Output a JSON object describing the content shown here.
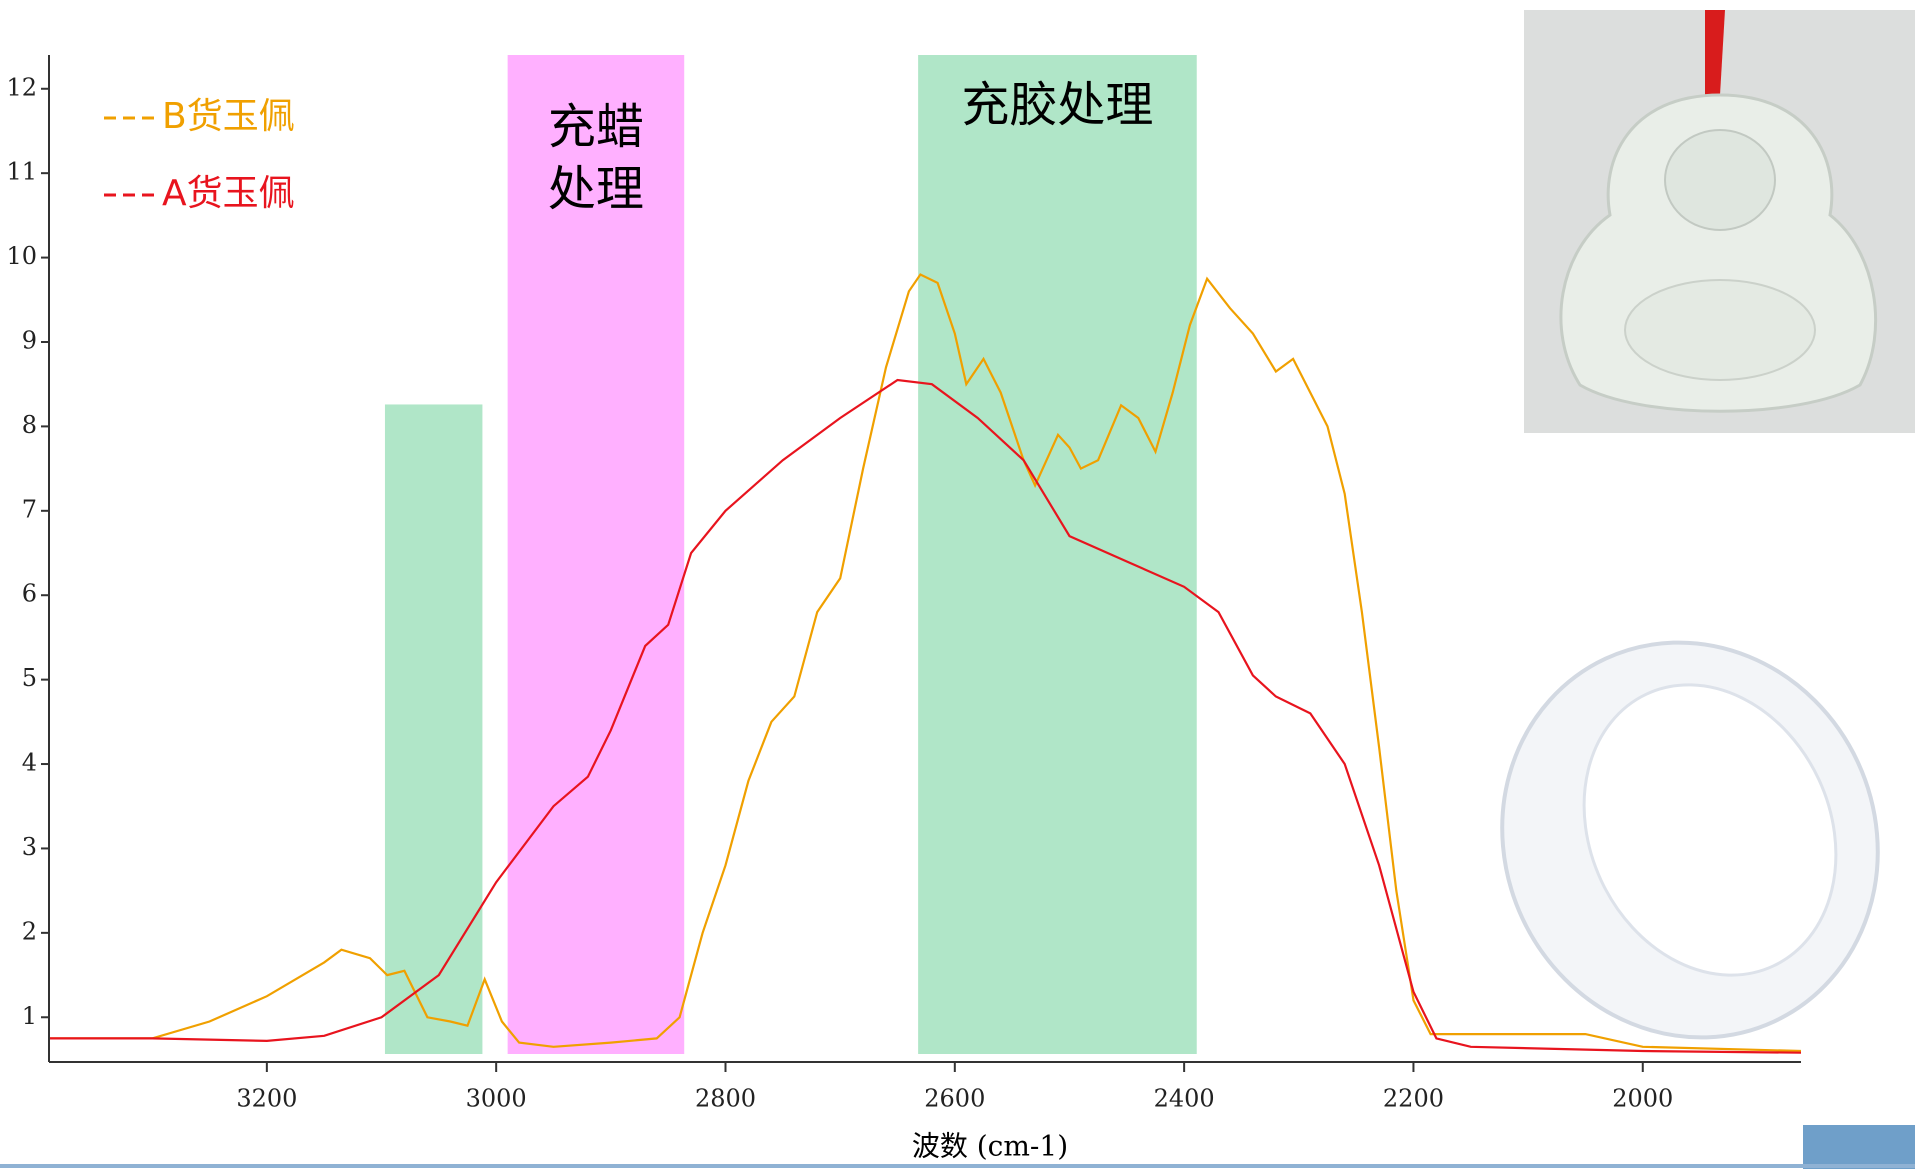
{
  "chart_data": {
    "type": "line",
    "x_label": "波数 (cm-1)",
    "xlim": [
      3390,
      1862
    ],
    "ylim": [
      0.47,
      12.4
    ],
    "xticks": [
      3200,
      3000,
      2800,
      2600,
      2400,
      2200,
      2000
    ],
    "yticks": [
      1,
      2,
      3,
      4,
      5,
      6,
      7,
      8,
      9,
      10,
      11,
      12
    ],
    "bands": [
      {
        "xrange": [
          3097,
          3012
        ],
        "ytop": 8.26,
        "color": "#b0e6c8"
      },
      {
        "xrange": [
          2990,
          2836
        ],
        "ytop": 12.4,
        "color": "#ffb0ff",
        "label_lines": [
          "充蜡",
          "处理"
        ]
      },
      {
        "xrange": [
          2632,
          2389
        ],
        "ytop": 12.4,
        "color": "#b0e6c8",
        "label_lines": [
          "充胶处理"
        ]
      }
    ],
    "series": [
      {
        "name": "B货玉佩",
        "color": "#f0a000",
        "x": [
          3390,
          3300,
          3250,
          3200,
          3150,
          3135,
          3110,
          3095,
          3080,
          3060,
          3040,
          3025,
          3010,
          2995,
          2980,
          2950,
          2900,
          2860,
          2840,
          2820,
          2800,
          2780,
          2760,
          2740,
          2720,
          2700,
          2680,
          2660,
          2640,
          2630,
          2615,
          2600,
          2590,
          2575,
          2560,
          2540,
          2530,
          2510,
          2500,
          2490,
          2475,
          2455,
          2440,
          2425,
          2410,
          2395,
          2380,
          2360,
          2340,
          2320,
          2305,
          2290,
          2275,
          2260,
          2245,
          2230,
          2215,
          2200,
          2185,
          2100,
          2050,
          2000,
          1862
        ],
        "values": [
          0.75,
          0.75,
          0.95,
          1.25,
          1.65,
          1.8,
          1.7,
          1.5,
          1.55,
          1.0,
          0.95,
          0.9,
          1.45,
          0.95,
          0.7,
          0.65,
          0.7,
          0.75,
          1.0,
          2.0,
          2.8,
          3.8,
          4.5,
          4.8,
          5.8,
          6.2,
          7.5,
          8.7,
          9.6,
          9.8,
          9.7,
          9.1,
          8.5,
          8.8,
          8.4,
          7.6,
          7.3,
          7.9,
          7.75,
          7.5,
          7.6,
          8.25,
          8.1,
          7.7,
          8.4,
          9.2,
          9.75,
          9.4,
          9.1,
          8.65,
          8.8,
          8.4,
          8.0,
          7.2,
          5.8,
          4.2,
          2.5,
          1.2,
          0.8,
          0.8,
          0.8,
          0.65,
          0.6
        ]
      },
      {
        "name": "A货玉佩",
        "color": "#e8141e",
        "x": [
          3390,
          3300,
          3200,
          3150,
          3100,
          3050,
          3000,
          2950,
          2920,
          2900,
          2870,
          2850,
          2830,
          2800,
          2750,
          2700,
          2650,
          2620,
          2580,
          2540,
          2500,
          2450,
          2400,
          2370,
          2340,
          2320,
          2290,
          2260,
          2230,
          2200,
          2180,
          2150,
          2000,
          1862
        ],
        "values": [
          0.75,
          0.75,
          0.72,
          0.78,
          1.0,
          1.5,
          2.6,
          3.5,
          3.85,
          4.4,
          5.4,
          5.65,
          6.5,
          7.0,
          7.6,
          8.1,
          8.55,
          8.5,
          8.1,
          7.6,
          6.7,
          6.4,
          6.1,
          5.8,
          5.05,
          4.8,
          4.6,
          4.0,
          2.8,
          1.3,
          0.75,
          0.65,
          0.6,
          0.58
        ]
      }
    ]
  }
}
